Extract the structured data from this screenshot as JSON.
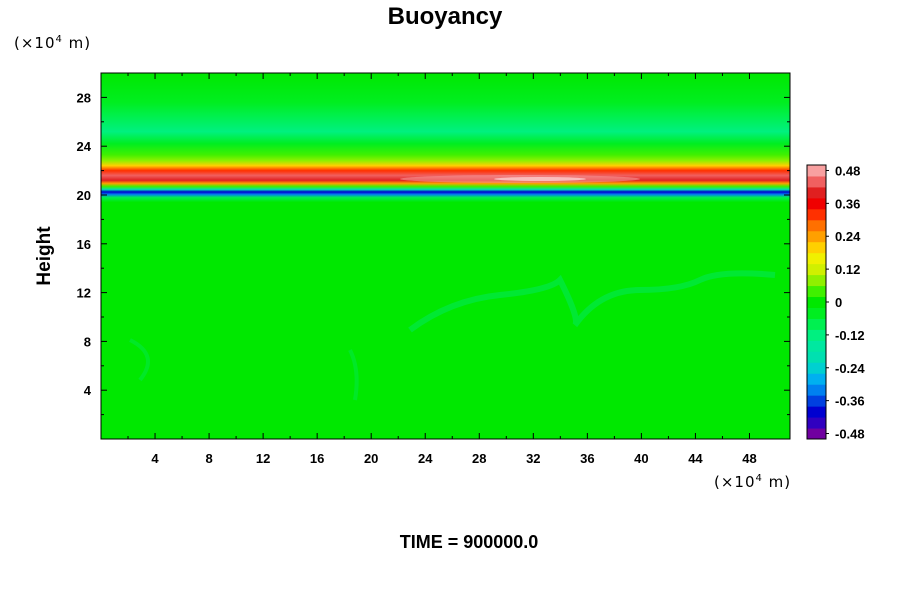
{
  "chart_data": {
    "type": "heatmap",
    "title": "Buoyancy",
    "ylabel": "Height",
    "x_unit": {
      "prefix": "(×10",
      "power": "4",
      "suffix": " m)"
    },
    "y_unit": {
      "prefix": "(×10",
      "power": "4",
      "suffix": " m)"
    },
    "xlim": [
      0,
      51
    ],
    "ylim": [
      0,
      30
    ],
    "x_ticks": [
      "4",
      "8",
      "12",
      "16",
      "20",
      "24",
      "28",
      "32",
      "36",
      "40",
      "44",
      "48"
    ],
    "y_ticks": [
      "4",
      "8",
      "12",
      "16",
      "20",
      "24",
      "28"
    ],
    "colorbar": {
      "range": [
        -0.5,
        0.5
      ],
      "labels": [
        "0.48",
        "0.36",
        "0.24",
        "0.12",
        "0",
        "-0.12",
        "-0.24",
        "-0.36",
        "-0.48"
      ],
      "colors": [
        "#7000a0",
        "#3000c0",
        "#0000d0",
        "#0040e0",
        "#0080f0",
        "#00b0f0",
        "#00d0d0",
        "#00e0b0",
        "#00e8a0",
        "#00f080",
        "#00f050",
        "#00ee20",
        "#00e800",
        "#40f000",
        "#90f000",
        "#d0f000",
        "#f0f000",
        "#ffd000",
        "#ffa000",
        "#ff7000",
        "#ff3000",
        "#f00000",
        "#e02020",
        "#f06060",
        "#f8a0a0"
      ]
    },
    "profile": [
      {
        "height": 0,
        "value": 0.0
      },
      {
        "height": 19.4,
        "value": 0.0
      },
      {
        "height": 19.8,
        "value": -0.1
      },
      {
        "height": 20.05,
        "value": -0.32
      },
      {
        "height": 20.25,
        "value": -0.42
      },
      {
        "height": 20.45,
        "value": -0.2
      },
      {
        "height": 20.7,
        "value": 0.02
      },
      {
        "height": 20.95,
        "value": 0.24
      },
      {
        "height": 21.2,
        "value": 0.38
      },
      {
        "height": 21.6,
        "value": 0.42
      },
      {
        "height": 22.0,
        "value": 0.33
      },
      {
        "height": 22.4,
        "value": 0.2
      },
      {
        "height": 22.8,
        "value": 0.08
      },
      {
        "height": 23.3,
        "value": 0.02
      },
      {
        "height": 24.2,
        "value": -0.05
      },
      {
        "height": 25.2,
        "value": -0.11
      },
      {
        "height": 26.4,
        "value": -0.1
      },
      {
        "height": 27.6,
        "value": -0.06
      },
      {
        "height": 30,
        "value": -0.02
      }
    ],
    "time_label": "TIME = 900000.0"
  }
}
